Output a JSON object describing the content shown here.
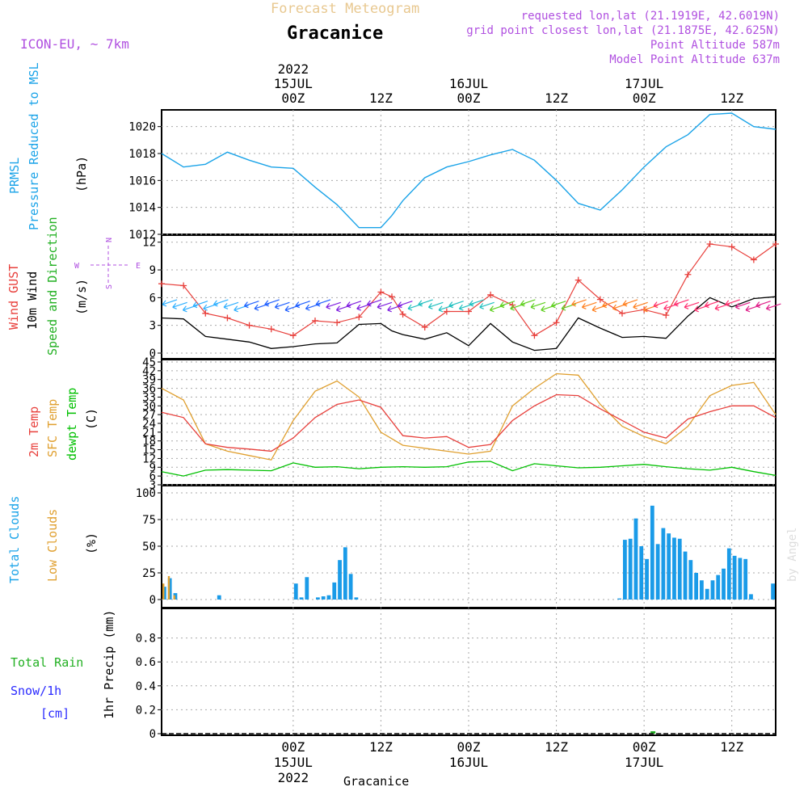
{
  "header": {
    "product": "Forecast Meteogram",
    "location": "Gracanice",
    "model": "ICON-EU, ~ 7km",
    "requested": "requested lon,lat (21.1919E, 42.6019N)",
    "grid_point": "grid point closest lon,lat (21.1875E, 42.625N)",
    "point_altitude": "Point Altitude 587m",
    "model_altitude": "Model Point Altitude 637m",
    "credit": "by Angel",
    "footer_location": "Gracanice"
  },
  "time_axis": {
    "top": [
      {
        "t": 18,
        "lines": [
          "2022",
          "15JUL",
          "00Z"
        ]
      },
      {
        "t": 30,
        "lines": [
          "12Z"
        ]
      },
      {
        "t": 42,
        "lines": [
          "16JUL",
          "00Z"
        ]
      },
      {
        "t": 54,
        "lines": [
          "12Z"
        ]
      },
      {
        "t": 66,
        "lines": [
          "17JUL",
          "00Z"
        ]
      },
      {
        "t": 78,
        "lines": [
          "12Z"
        ]
      }
    ],
    "bottom": [
      {
        "t": 18,
        "lines": [
          "00Z",
          "15JUL",
          "2022"
        ]
      },
      {
        "t": 30,
        "lines": [
          "12Z"
        ]
      },
      {
        "t": 42,
        "lines": [
          "00Z",
          "16JUL"
        ]
      },
      {
        "t": 54,
        "lines": [
          "12Z"
        ]
      },
      {
        "t": 66,
        "lines": [
          "00Z",
          "17JUL"
        ]
      },
      {
        "t": 78,
        "lines": [
          "12Z"
        ]
      }
    ]
  },
  "colors": {
    "pressure": "#1aa3e8",
    "gust": "#e8403c",
    "wind": "#000000",
    "t2m": "#e8403c",
    "sfc": "#e0a030",
    "dew": "#00c000",
    "total_cloud": "#1a9be8",
    "low_cloud": "#e0a030",
    "rain": "#22b022",
    "snow": "#2a2aff",
    "label_purple": "#b050e0"
  },
  "labels": {
    "pressure": [
      "PRMSL",
      "Pressure Reduced to MSL"
    ],
    "pressure_unit": "(hPa)",
    "wind_gust": "Wind GUST",
    "wind_10m": "10m Wind",
    "wind_dir": "Speed and Direction",
    "wind_unit": "(m/s)",
    "t2m": "2m Temp",
    "sfc": "SFC Temp",
    "dew": "dewpt Temp",
    "temp_unit": "(C)",
    "total_clouds": "Total Clouds",
    "low_clouds": "Low Clouds",
    "cloud_unit": "(%)",
    "precip": "1hr Precip (mm)",
    "total_rain": "Total  Rain",
    "snow": "Snow/1h",
    "snow_unit": "[cm]",
    "compass_w": "W",
    "compass_e": "E",
    "compass_n": "N",
    "compass_s": "S"
  },
  "chart_data": [
    {
      "type": "line",
      "name": "pressure",
      "ylim": [
        1012,
        1021
      ],
      "yticks": [
        1012,
        1014,
        1016,
        1018,
        1020
      ],
      "x": [
        0,
        3,
        6,
        9,
        12,
        15,
        18,
        21,
        24,
        27,
        30,
        31.5,
        33,
        36,
        39,
        42,
        45,
        48,
        51,
        54,
        57,
        60,
        63,
        66,
        69,
        72,
        75,
        78,
        81,
        84
      ],
      "values": [
        1018.0,
        1017.0,
        1017.2,
        1018.1,
        1017.5,
        1017.0,
        1016.9,
        1015.5,
        1014.2,
        1012.5,
        1012.5,
        1013.4,
        1014.5,
        1016.2,
        1017.0,
        1017.4,
        1017.9,
        1018.3,
        1017.5,
        1016.0,
        1014.3,
        1013.8,
        1015.3,
        1017.0,
        1018.5,
        1019.4,
        1020.9,
        1021.0,
        1020.0,
        1019.8
      ]
    },
    {
      "type": "line",
      "name": "wind",
      "ylim": [
        0,
        12.5
      ],
      "yticks": [
        0,
        3,
        6,
        9,
        12
      ],
      "gust_x": [
        0,
        3,
        6,
        9,
        12,
        15,
        18,
        21,
        24,
        27,
        30,
        31.5,
        33,
        36,
        39,
        42,
        45,
        48,
        51,
        54,
        57,
        60,
        63,
        66,
        69,
        72,
        75,
        78,
        81,
        84
      ],
      "gust": [
        7.5,
        7.3,
        4.3,
        3.8,
        3.0,
        2.6,
        1.9,
        3.5,
        3.3,
        3.9,
        6.6,
        6.1,
        4.2,
        2.8,
        4.5,
        4.5,
        6.3,
        5.2,
        1.9,
        3.3,
        7.9,
        5.8,
        4.3,
        4.7,
        4.1,
        8.5,
        11.8,
        11.5,
        10.1,
        11.8
      ],
      "wind_x": [
        0,
        3,
        6,
        9,
        12,
        15,
        18,
        21,
        24,
        27,
        30,
        31.5,
        33,
        36,
        39,
        42,
        45,
        48,
        51,
        54,
        57,
        60,
        63,
        66,
        69,
        72,
        75,
        78,
        81,
        84
      ],
      "wind": [
        3.8,
        3.7,
        1.8,
        1.5,
        1.2,
        0.5,
        0.7,
        1.0,
        1.1,
        3.1,
        3.2,
        2.4,
        2.0,
        1.5,
        2.2,
        0.8,
        3.2,
        1.2,
        0.3,
        0.5,
        3.8,
        2.7,
        1.7,
        1.8,
        1.6,
        4.0,
        6.0,
        5.0,
        5.9,
        6.1
      ]
    },
    {
      "type": "line",
      "name": "temperature",
      "ylim": [
        3,
        45
      ],
      "yticks": [
        3,
        6,
        9,
        12,
        15,
        18,
        21,
        24,
        27,
        30,
        33,
        36,
        39,
        42,
        45
      ],
      "x": [
        0,
        3,
        6,
        9,
        12,
        15,
        18,
        21,
        24,
        27,
        30,
        33,
        36,
        39,
        42,
        45,
        48,
        51,
        54,
        57,
        60,
        63,
        66,
        69,
        72,
        75,
        78,
        81,
        84
      ],
      "t2m": [
        27.8,
        26.0,
        17.0,
        15.8,
        15.2,
        14.5,
        19.0,
        26.0,
        30.5,
        32.0,
        29.5,
        19.8,
        19.0,
        19.5,
        15.8,
        16.8,
        25.0,
        30.0,
        33.8,
        33.5,
        29.0,
        25.0,
        21.0,
        19.0,
        25.5,
        28.0,
        30.0,
        30.0,
        26.0
      ],
      "sfc": [
        36.0,
        32.0,
        17.0,
        14.5,
        13.0,
        11.5,
        25.0,
        35.0,
        38.5,
        33.0,
        21.0,
        16.5,
        15.5,
        14.5,
        13.5,
        14.5,
        30.0,
        36.0,
        41.0,
        40.5,
        30.5,
        23.0,
        19.5,
        17.0,
        23.0,
        33.5,
        37.0,
        38.0,
        27.0
      ],
      "dew": [
        7.5,
        6.0,
        8.0,
        8.2,
        8.0,
        7.8,
        10.5,
        9.0,
        9.2,
        8.5,
        9.0,
        9.2,
        9.0,
        9.2,
        10.8,
        11.0,
        7.8,
        10.2,
        9.5,
        8.8,
        9.0,
        9.5,
        10.0,
        9.2,
        8.5,
        8.0,
        9.0,
        7.5,
        6.2
      ]
    },
    {
      "type": "bar",
      "name": "clouds",
      "ylim": [
        0,
        100
      ],
      "yticks": [
        0,
        25,
        50,
        75,
        100
      ],
      "total": [
        12,
        20,
        6,
        0,
        0,
        0,
        0,
        0,
        0,
        0,
        4,
        0,
        0,
        0,
        0,
        0,
        0,
        0,
        0,
        0,
        0,
        0,
        0,
        0,
        15,
        2,
        21,
        0,
        2,
        3,
        4,
        16,
        37,
        49,
        24,
        2,
        0,
        0,
        0,
        0,
        0,
        0,
        0,
        0,
        0,
        0,
        0,
        0,
        0,
        0,
        0,
        0,
        0,
        0,
        0,
        0,
        0,
        0,
        0,
        0,
        0,
        0,
        0,
        0,
        0,
        0,
        0,
        0,
        0,
        0,
        0,
        0,
        0,
        0,
        0,
        0,
        0,
        0,
        0,
        0,
        0,
        0,
        0,
        1,
        56,
        57,
        76,
        50,
        38,
        88,
        52,
        67,
        62,
        58,
        57,
        45,
        37,
        25,
        18,
        10,
        18,
        23,
        29,
        48,
        41,
        39,
        38,
        5,
        0,
        0,
        0,
        15
      ],
      "low": [
        15,
        22,
        4,
        0,
        0,
        0,
        0,
        0,
        0,
        0,
        0,
        0,
        0,
        0,
        0,
        0,
        0,
        0,
        0,
        0,
        0,
        0,
        0,
        0,
        0,
        0,
        0,
        0,
        0,
        0,
        0,
        0,
        0,
        0,
        0,
        0,
        0,
        0,
        0,
        0,
        0,
        0,
        0,
        0,
        0,
        0,
        0,
        0,
        0,
        0,
        0,
        0,
        0,
        0,
        0,
        0,
        0,
        0,
        0,
        0,
        0,
        0,
        0,
        0,
        0,
        0,
        0,
        0,
        0,
        0,
        0,
        0,
        0,
        0,
        0,
        0,
        0,
        0,
        0,
        0,
        0,
        0,
        0,
        0,
        0,
        0,
        0,
        0,
        0,
        0,
        0,
        0,
        0,
        0,
        0,
        0,
        0,
        0,
        0,
        0,
        0,
        0,
        0,
        0,
        0,
        0,
        0,
        0,
        0,
        0,
        0,
        0
      ]
    },
    {
      "type": "bar",
      "name": "precipitation",
      "ylim": [
        0,
        1.0
      ],
      "yticks": [
        0,
        0.2,
        0.4,
        0.6,
        0.8
      ],
      "rain": [
        {
          "t": 66,
          "value": 0.02
        }
      ]
    }
  ]
}
